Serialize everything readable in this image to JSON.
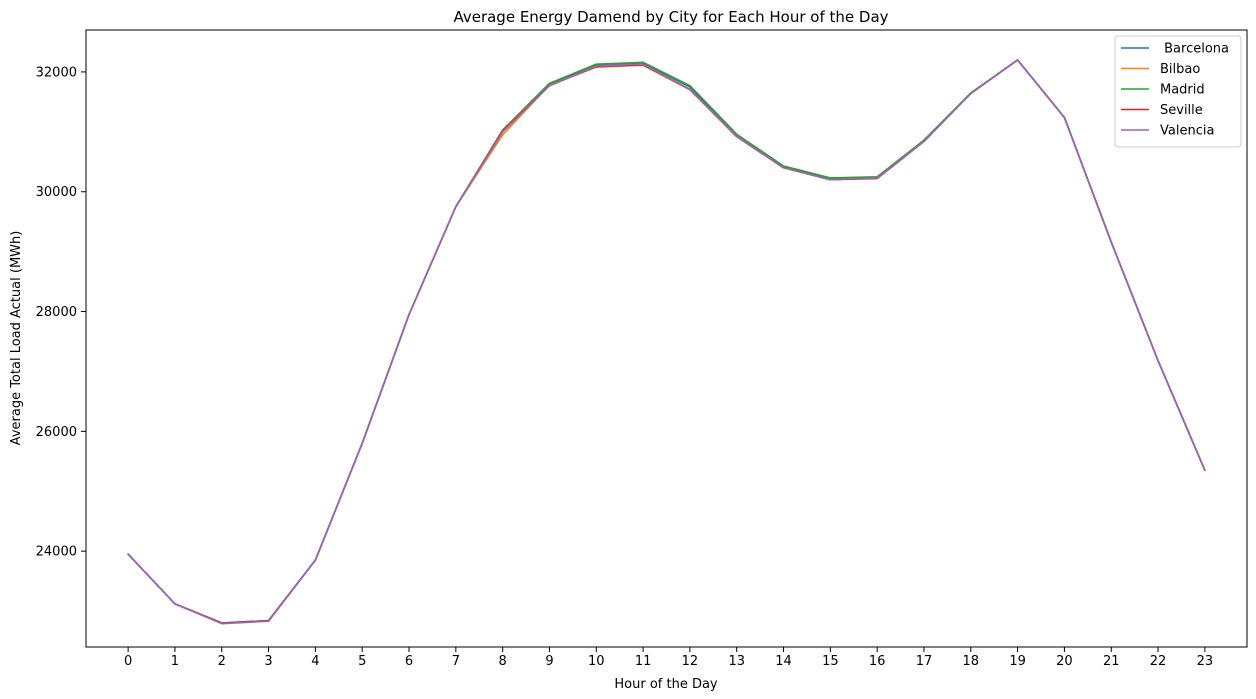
{
  "chart_data": {
    "type": "line",
    "title": "Average Energy Damend by City for Each Hour of the Day",
    "xlabel": "Hour of the Day",
    "ylabel": "Average Total Load Actual (MWh)",
    "x": [
      0,
      1,
      2,
      3,
      4,
      5,
      6,
      7,
      8,
      9,
      10,
      11,
      12,
      13,
      14,
      15,
      16,
      17,
      18,
      19,
      20,
      21,
      22,
      23
    ],
    "x_tick_labels": [
      "0",
      "1",
      "2",
      "3",
      "4",
      "5",
      "6",
      "7",
      "8",
      "9",
      "10",
      "11",
      "12",
      "13",
      "14",
      "15",
      "16",
      "17",
      "18",
      "19",
      "20",
      "21",
      "22",
      "23"
    ],
    "xlim": [
      -0.9,
      23.9
    ],
    "ylim": [
      22400,
      32700
    ],
    "y_ticks": [
      24000,
      26000,
      28000,
      30000,
      32000
    ],
    "y_tick_labels": [
      "24000",
      "26000",
      "28000",
      "30000",
      "32000"
    ],
    "grid": false,
    "legend_position": "top-right",
    "series": [
      {
        "name": " Barcelona",
        "color": "#1f77b4",
        "values": [
          23950,
          23120,
          22800,
          22840,
          23850,
          25800,
          27950,
          29750,
          31020,
          31800,
          32120,
          32150,
          31750,
          30950,
          30420,
          30220,
          30240,
          30860,
          31640,
          32200,
          31240,
          29160,
          27180,
          25350
        ]
      },
      {
        "name": "Bilbao",
        "color": "#ff7f0e",
        "values": [
          23950,
          23120,
          22800,
          22840,
          23850,
          25800,
          27950,
          29750,
          30950,
          31780,
          32080,
          32110,
          31700,
          30920,
          30400,
          30200,
          30230,
          30840,
          31640,
          32200,
          31240,
          29160,
          27180,
          25350
        ]
      },
      {
        "name": "Madrid",
        "color": "#2ca02c",
        "values": [
          23950,
          23120,
          22800,
          22840,
          23850,
          25800,
          27950,
          29750,
          31030,
          31810,
          32130,
          32160,
          31770,
          30960,
          30430,
          30230,
          30250,
          30860,
          31650,
          32200,
          31240,
          29160,
          27180,
          25350
        ]
      },
      {
        "name": "Seville",
        "color": "#d62728",
        "values": [
          23950,
          23120,
          22800,
          22840,
          23850,
          25800,
          27950,
          29750,
          31020,
          31770,
          32090,
          32120,
          31710,
          30920,
          30400,
          30200,
          30220,
          30840,
          31640,
          32200,
          31240,
          29160,
          27180,
          25350
        ]
      },
      {
        "name": "Valencia",
        "color": "#9467bd",
        "values": [
          23950,
          23120,
          22790,
          22830,
          23850,
          25800,
          27950,
          29750,
          31000,
          31770,
          32100,
          32130,
          31710,
          30930,
          30400,
          30200,
          30230,
          30840,
          31640,
          32200,
          31240,
          29160,
          27180,
          25350
        ]
      }
    ]
  }
}
